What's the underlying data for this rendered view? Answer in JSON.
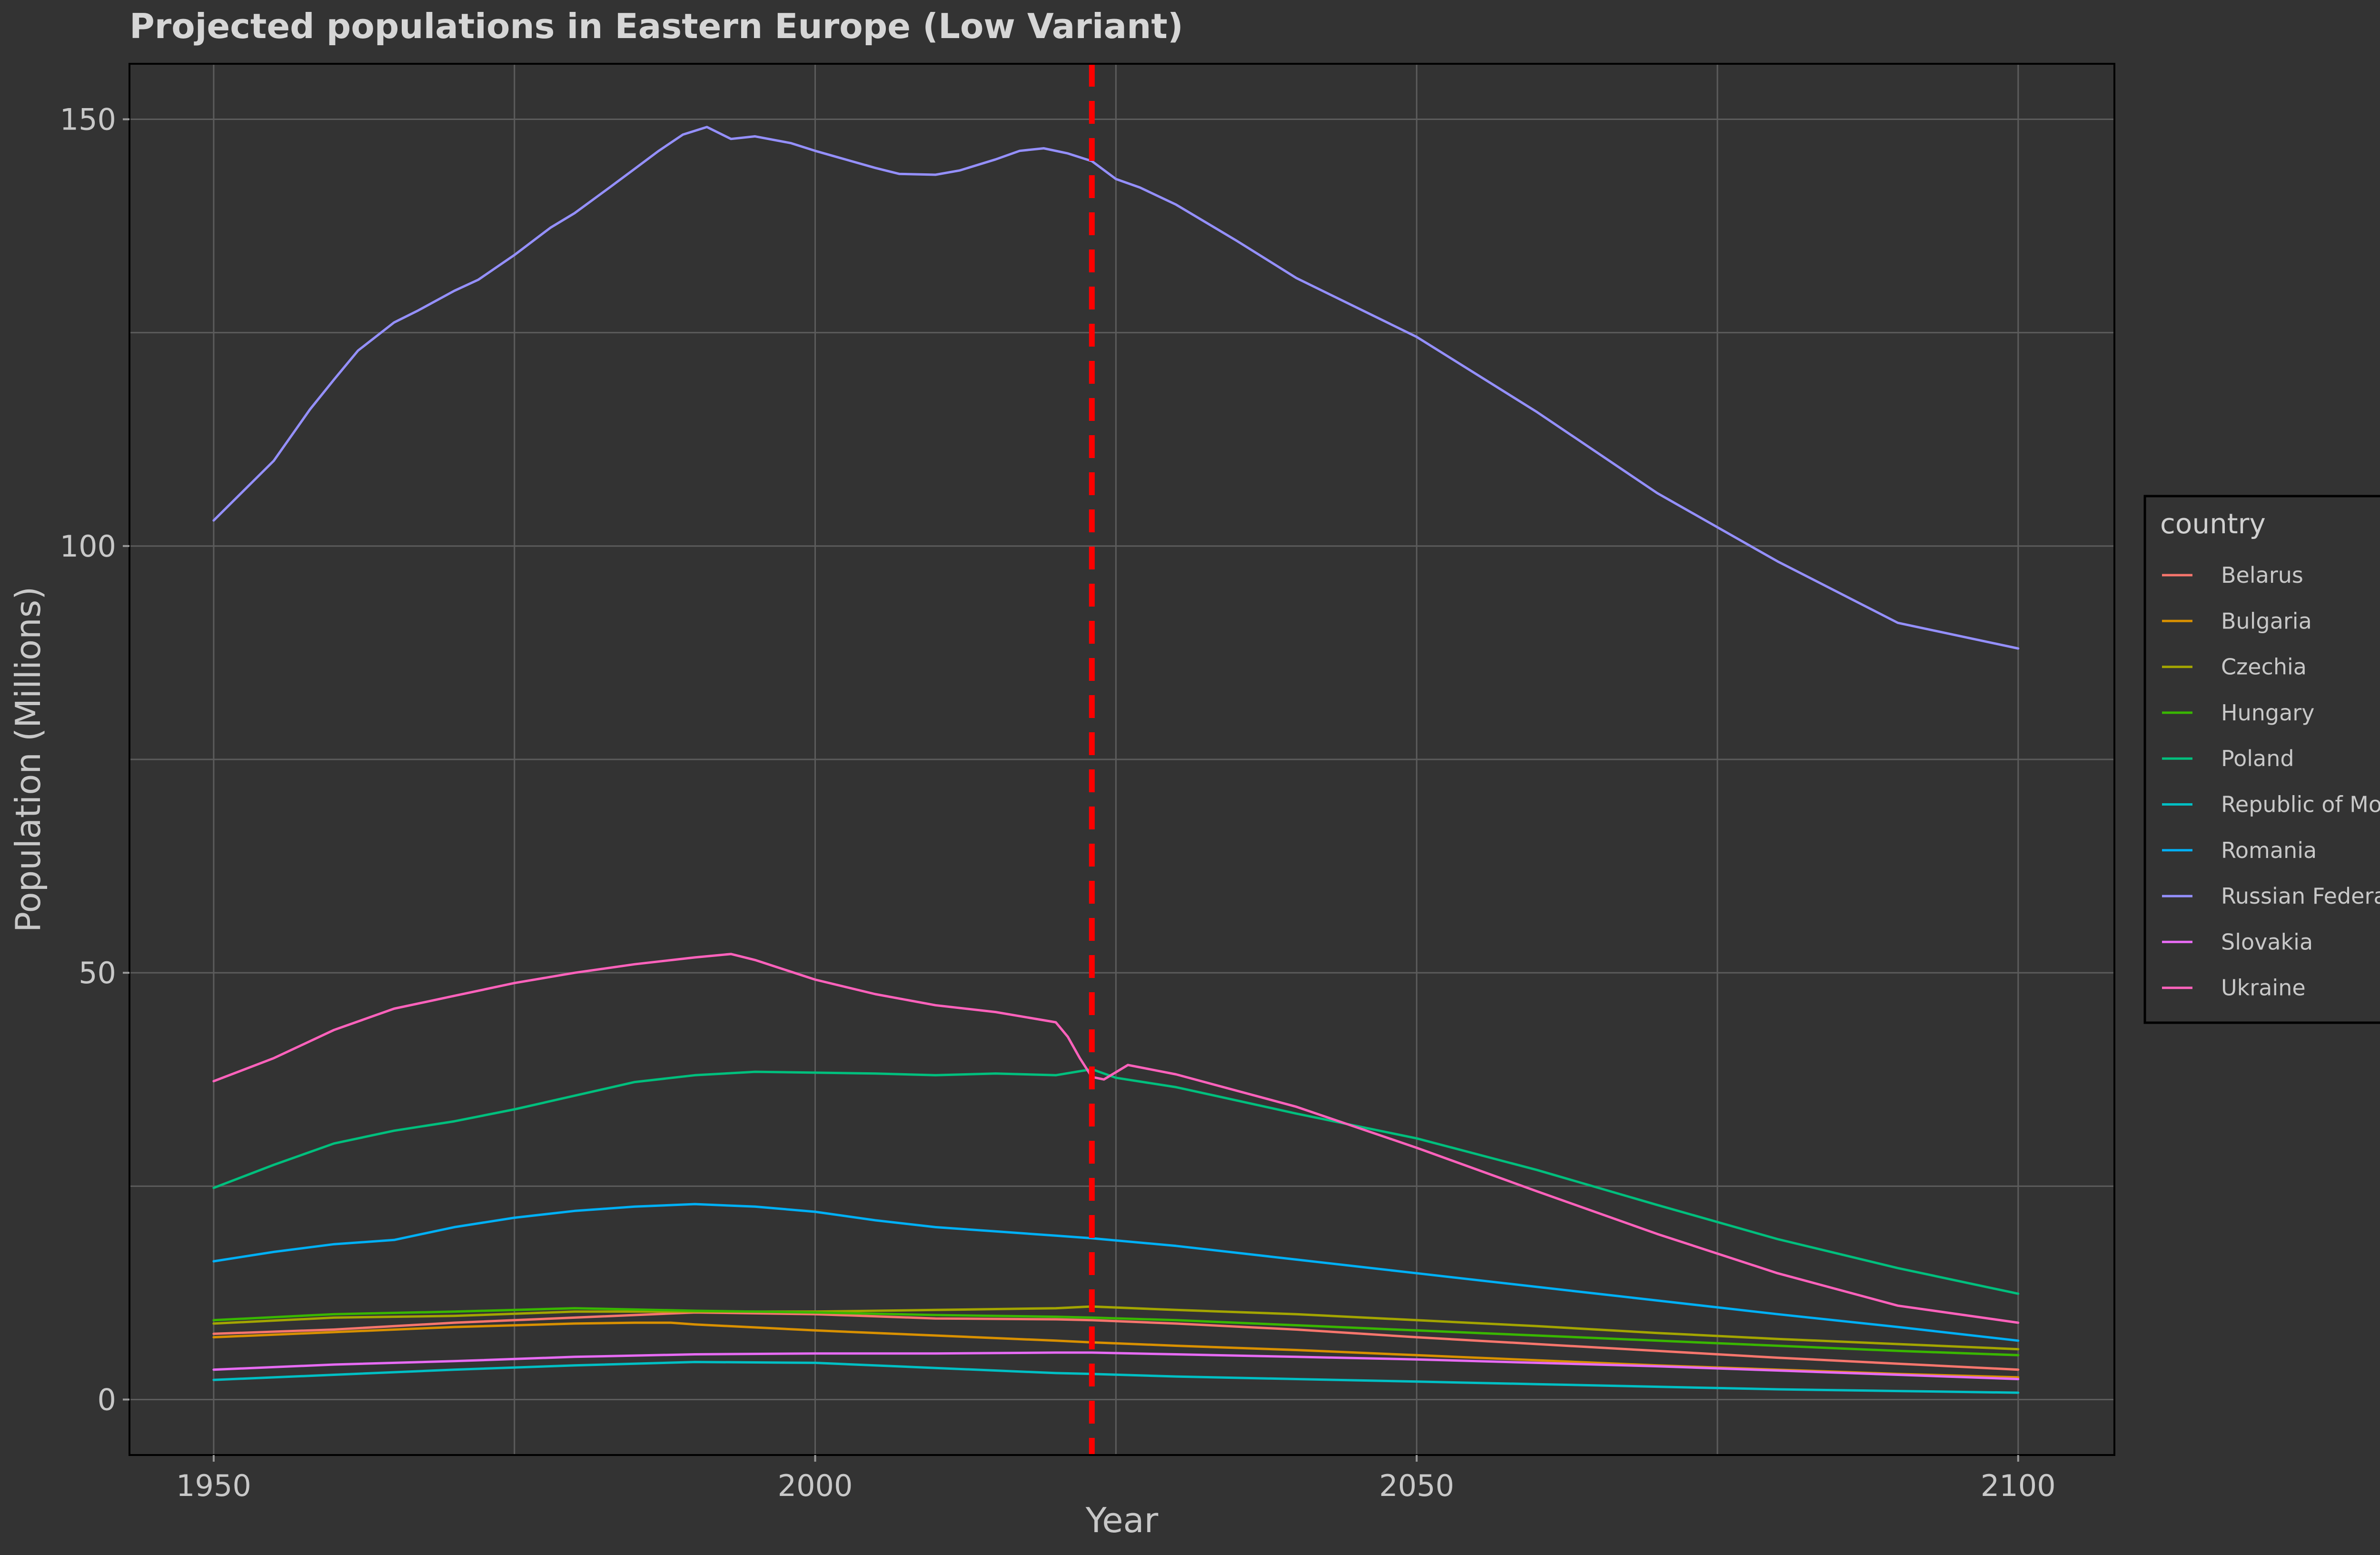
{
  "chart_data": {
    "type": "line",
    "title": "Projected populations in Eastern Europe (Low Variant)",
    "xlabel": "Year",
    "ylabel": "Population (Millions)",
    "xlim": [
      1943,
      2108
    ],
    "ylim": [
      -6.5,
      156.5
    ],
    "x_ticks": [
      1950,
      2000,
      2050,
      2100
    ],
    "x_tick_labels": [
      "1950",
      "2000",
      "2050",
      "2100"
    ],
    "y_ticks": [
      0,
      50,
      100,
      150
    ],
    "y_tick_labels": [
      "0",
      "50",
      "100",
      "150"
    ],
    "x_minor_gridlines": [
      1975,
      2025,
      2075
    ],
    "y_minor_gridlines": [
      25,
      75,
      125
    ],
    "grid": true,
    "legend_title": "country",
    "legend_position": "right",
    "reference_line": {
      "x": 2023,
      "color": "#ff0000",
      "style": "dashed"
    },
    "colors": {
      "background": "#333333",
      "grid": "#5c5c5c",
      "text": "#c8c8c8"
    },
    "series": [
      {
        "name": "Belarus",
        "color": "#F8766D",
        "x": [
          1950,
          1960,
          1970,
          1980,
          1990,
          2000,
          2010,
          2020,
          2023,
          2030,
          2040,
          2050,
          2060,
          2070,
          2080,
          2090,
          2100
        ],
        "values": [
          7.7,
          8.2,
          9.0,
          9.6,
          10.2,
          10.0,
          9.5,
          9.4,
          9.3,
          8.9,
          8.2,
          7.3,
          6.5,
          5.7,
          4.9,
          4.2,
          3.5
        ]
      },
      {
        "name": "Bulgaria",
        "color": "#D89000",
        "x": [
          1950,
          1960,
          1970,
          1980,
          1985,
          1988,
          1990,
          2000,
          2010,
          2020,
          2023,
          2030,
          2040,
          2050,
          2060,
          2070,
          2080,
          2090,
          2100
        ],
        "values": [
          7.3,
          7.9,
          8.5,
          8.9,
          9.0,
          9.0,
          8.8,
          8.1,
          7.5,
          6.9,
          6.7,
          6.3,
          5.8,
          5.2,
          4.6,
          4.0,
          3.5,
          3.0,
          2.6
        ]
      },
      {
        "name": "Czechia",
        "color": "#A3A500",
        "x": [
          1950,
          1960,
          1970,
          1980,
          1990,
          2000,
          2010,
          2020,
          2023,
          2030,
          2040,
          2050,
          2060,
          2070,
          2080,
          2090,
          2100
        ],
        "values": [
          8.9,
          9.6,
          9.8,
          10.3,
          10.3,
          10.3,
          10.5,
          10.7,
          10.9,
          10.5,
          10.0,
          9.3,
          8.6,
          7.8,
          7.1,
          6.5,
          5.9
        ]
      },
      {
        "name": "Hungary",
        "color": "#39B600",
        "x": [
          1950,
          1960,
          1970,
          1980,
          1990,
          2000,
          2010,
          2020,
          2023,
          2030,
          2040,
          2050,
          2060,
          2070,
          2080,
          2090,
          2100
        ],
        "values": [
          9.3,
          10.0,
          10.3,
          10.7,
          10.4,
          10.2,
          9.9,
          9.7,
          9.6,
          9.3,
          8.7,
          8.1,
          7.5,
          6.9,
          6.3,
          5.7,
          5.2
        ]
      },
      {
        "name": "Poland",
        "color": "#00BF7D",
        "x": [
          1950,
          1955,
          1960,
          1965,
          1970,
          1975,
          1980,
          1985,
          1990,
          1995,
          2000,
          2005,
          2010,
          2015,
          2020,
          2023,
          2025,
          2030,
          2040,
          2050,
          2060,
          2070,
          2080,
          2090,
          2100
        ],
        "values": [
          24.8,
          27.5,
          30.0,
          31.5,
          32.6,
          34.0,
          35.6,
          37.2,
          38.0,
          38.4,
          38.3,
          38.2,
          38.0,
          38.2,
          38.0,
          38.7,
          37.7,
          36.6,
          33.5,
          30.6,
          26.9,
          22.8,
          18.8,
          15.4,
          12.4
        ]
      },
      {
        "name": "Republic of Moldova",
        "color": "#00BFC4",
        "x": [
          1950,
          1960,
          1970,
          1980,
          1990,
          2000,
          2010,
          2020,
          2023,
          2030,
          2040,
          2050,
          2060,
          2070,
          2080,
          2090,
          2100
        ],
        "values": [
          2.3,
          2.9,
          3.5,
          4.0,
          4.4,
          4.3,
          3.7,
          3.1,
          3.0,
          2.7,
          2.4,
          2.1,
          1.8,
          1.5,
          1.2,
          1.0,
          0.8
        ]
      },
      {
        "name": "Romania",
        "color": "#00B0F6",
        "x": [
          1950,
          1955,
          1960,
          1965,
          1970,
          1975,
          1980,
          1985,
          1990,
          1995,
          2000,
          2005,
          2010,
          2015,
          2020,
          2023,
          2030,
          2040,
          2050,
          2060,
          2070,
          2080,
          2090,
          2100
        ],
        "values": [
          16.2,
          17.3,
          18.2,
          18.7,
          20.2,
          21.3,
          22.1,
          22.6,
          22.9,
          22.6,
          22.0,
          21.0,
          20.2,
          19.7,
          19.2,
          18.9,
          18.0,
          16.4,
          14.8,
          13.2,
          11.6,
          10.0,
          8.5,
          6.9
        ]
      },
      {
        "name": "Russian Federation",
        "color": "#9590FF",
        "x": [
          1950,
          1955,
          1958,
          1960,
          1962,
          1965,
          1967,
          1970,
          1972,
          1975,
          1978,
          1980,
          1983,
          1985,
          1987,
          1989,
          1991,
          1993,
          1995,
          1998,
          2000,
          2002,
          2005,
          2007,
          2010,
          2012,
          2015,
          2017,
          2019,
          2021,
          2023,
          2025,
          2027,
          2030,
          2035,
          2040,
          2050,
          2060,
          2070,
          2080,
          2090,
          2100
        ],
        "values": [
          103.0,
          110.0,
          116.0,
          119.5,
          122.9,
          126.2,
          127.6,
          129.9,
          131.2,
          134.1,
          137.3,
          139.0,
          142.1,
          144.2,
          146.3,
          148.2,
          149.1,
          147.7,
          148.0,
          147.2,
          146.3,
          145.5,
          144.3,
          143.6,
          143.5,
          144.0,
          145.3,
          146.3,
          146.6,
          146.0,
          145.1,
          143.0,
          142.0,
          140.0,
          135.8,
          131.4,
          124.5,
          115.7,
          106.2,
          98.2,
          91.0,
          88.0
        ]
      },
      {
        "name": "Slovakia",
        "color": "#E76BF3",
        "x": [
          1950,
          1960,
          1970,
          1980,
          1990,
          2000,
          2010,
          2020,
          2023,
          2030,
          2040,
          2050,
          2060,
          2070,
          2080,
          2090,
          2100
        ],
        "values": [
          3.5,
          4.1,
          4.5,
          5.0,
          5.3,
          5.4,
          5.4,
          5.5,
          5.5,
          5.3,
          5.0,
          4.7,
          4.3,
          3.9,
          3.4,
          2.9,
          2.4
        ]
      },
      {
        "name": "Ukraine",
        "color": "#FF62BC",
        "x": [
          1950,
          1955,
          1960,
          1965,
          1970,
          1975,
          1980,
          1985,
          1990,
          1993,
          1995,
          2000,
          2005,
          2010,
          2015,
          2020,
          2021,
          2022,
          2023,
          2024,
          2026,
          2030,
          2040,
          2050,
          2060,
          2070,
          2080,
          2090,
          2100
        ],
        "values": [
          37.3,
          40.0,
          43.3,
          45.8,
          47.3,
          48.8,
          50.0,
          51.0,
          51.8,
          52.2,
          51.5,
          49.2,
          47.5,
          46.2,
          45.4,
          44.2,
          42.5,
          40.0,
          37.8,
          37.5,
          39.2,
          38.1,
          34.3,
          29.5,
          24.4,
          19.4,
          14.8,
          11.0,
          9.0
        ]
      }
    ]
  }
}
